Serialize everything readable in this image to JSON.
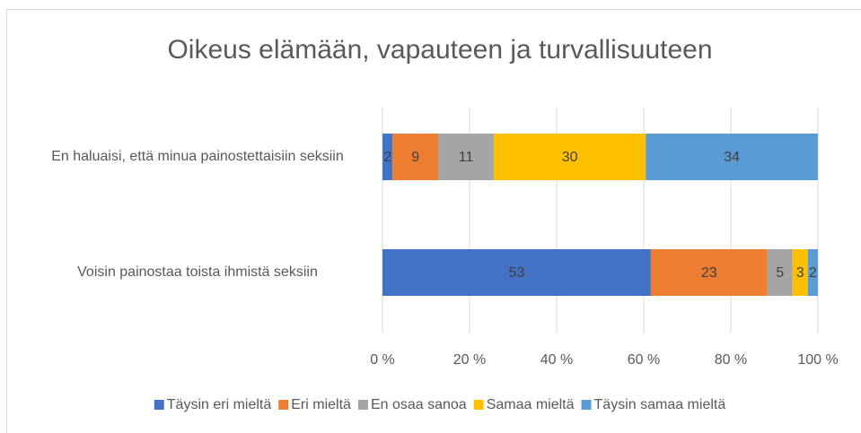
{
  "chart_data": {
    "type": "bar",
    "orientation": "horizontal",
    "stack": "percent",
    "title": "Oikeus elämään, vapauteen ja turvallisuuteen",
    "categories": [
      "En haluaisi, että minua painostettaisiin seksiin",
      "Voisin painostaa toista ihmistä seksiin"
    ],
    "series": [
      {
        "name": "Täysin eri mieltä",
        "color": "#4472c4",
        "values": [
          2,
          53
        ]
      },
      {
        "name": "Eri mieltä",
        "color": "#ed7d31",
        "values": [
          9,
          23
        ]
      },
      {
        "name": "En osaa sanoa",
        "color": "#a5a5a5",
        "values": [
          11,
          5
        ]
      },
      {
        "name": "Samaa mieltä",
        "color": "#ffc000",
        "values": [
          30,
          3
        ]
      },
      {
        "name": "Täysin samaa mieltä",
        "color": "#5b9bd5",
        "values": [
          34,
          2
        ]
      }
    ],
    "xlim": [
      0,
      100
    ],
    "xticks": [
      {
        "value": 0,
        "label": "0 %"
      },
      {
        "value": 20,
        "label": "20 %"
      },
      {
        "value": 40,
        "label": "40 %"
      },
      {
        "value": 60,
        "label": "60 %"
      },
      {
        "value": 80,
        "label": "80 %"
      },
      {
        "value": 100,
        "label": "100 %"
      }
    ],
    "grid": true,
    "legend": "bottom"
  }
}
